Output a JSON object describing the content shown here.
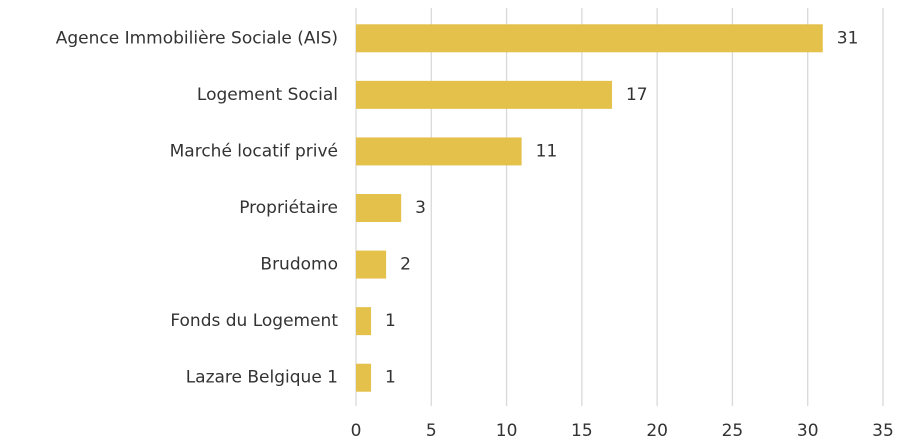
{
  "chart_data": {
    "type": "hbar",
    "categories": [
      "Agence Immobilière Sociale (AIS)",
      "Logement Social",
      "Marché locatif privé",
      "Propriétaire",
      "Brudomo",
      "Fonds du Logement",
      "Lazare Belgique 1"
    ],
    "values": [
      31,
      17,
      11,
      3,
      2,
      1,
      1
    ],
    "color": "#e4c14b",
    "xlim": [
      0,
      35
    ],
    "xticks": [
      0,
      5,
      10,
      15,
      20,
      25,
      30,
      35
    ],
    "grid": true
  }
}
